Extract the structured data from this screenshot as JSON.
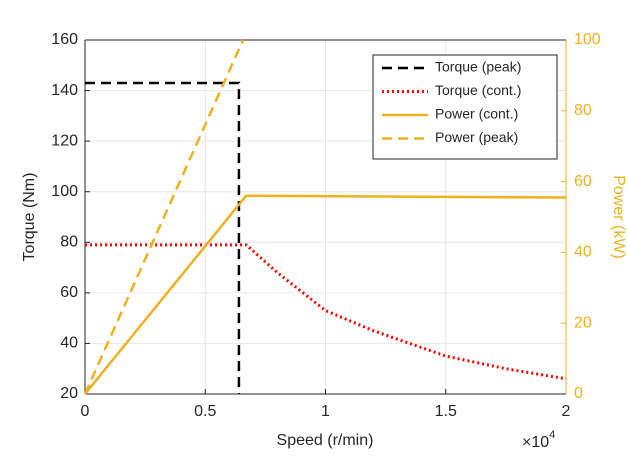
{
  "chart_data": {
    "type": "line",
    "xlabel": "Speed (r/min)",
    "ylabel": "Torque (Nm)",
    "y2label": "Power (kW)",
    "x_multiplier": {
      "base": "×10",
      "exponent": "4"
    },
    "xlim": [
      0,
      2
    ],
    "xticks": [
      0,
      0.5,
      1,
      1.5,
      2
    ],
    "ylim": [
      20,
      160
    ],
    "yticks": [
      20,
      40,
      60,
      80,
      100,
      120,
      140,
      160
    ],
    "y2lim": [
      0,
      100
    ],
    "y2ticks": [
      0,
      20,
      40,
      60,
      80,
      100
    ],
    "y2color": "#edb120",
    "grid": true,
    "legend": "upper right",
    "series": [
      {
        "name": "Torque (peak)",
        "color": "#000000",
        "line_style": "dashed",
        "x": [
          0,
          0.64,
          0.64
        ],
        "values": [
          143,
          143,
          20
        ]
      },
      {
        "name": "Torque (cont.)",
        "color": "#ff0000",
        "line_style": "dotted",
        "x": [
          0,
          0.67,
          0.8,
          1.0,
          1.2,
          1.5,
          1.75,
          2.0
        ],
        "values": [
          79,
          79,
          68,
          53,
          45,
          35,
          30,
          26
        ]
      },
      {
        "name": "Power (cont.)",
        "color": "#edb120",
        "line_style": "solid",
        "axis": "y2",
        "x": [
          0,
          0.67,
          2.0
        ],
        "values": [
          0,
          56,
          55.5
        ]
      },
      {
        "name": "Power (peak)",
        "color": "#edb120",
        "line_style": "dashed",
        "axis": "y2",
        "x": [
          0,
          0.657
        ],
        "values": [
          0,
          100
        ]
      }
    ]
  }
}
